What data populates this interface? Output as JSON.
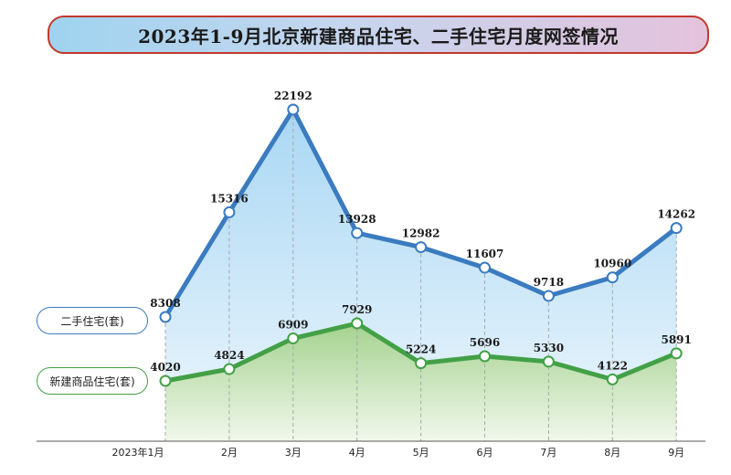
{
  "title": "2023年1-9月北京新建商品住宅、二手住宅月度网签情况",
  "chart_data": {
    "type": "area",
    "categories": [
      "2023年1月",
      "2月",
      "3月",
      "4月",
      "5月",
      "6月",
      "7月",
      "8月",
      "9月"
    ],
    "series": [
      {
        "name": "二手住宅(套)",
        "values": [
          8308,
          15316,
          22192,
          13928,
          12982,
          11607,
          9718,
          10960,
          14262
        ],
        "color": "#3b7bbf",
        "fill_top": "#a9d7f4",
        "fill_bottom": "#eef7fd"
      },
      {
        "name": "新建商品住宅(套)",
        "values": [
          4020,
          4824,
          6909,
          7929,
          5224,
          5696,
          5330,
          4122,
          5891
        ],
        "color": "#43a047",
        "fill_top": "#a5d28f",
        "fill_bottom": "#f1f8ec"
      }
    ],
    "grid": false,
    "legend_position": "left"
  }
}
